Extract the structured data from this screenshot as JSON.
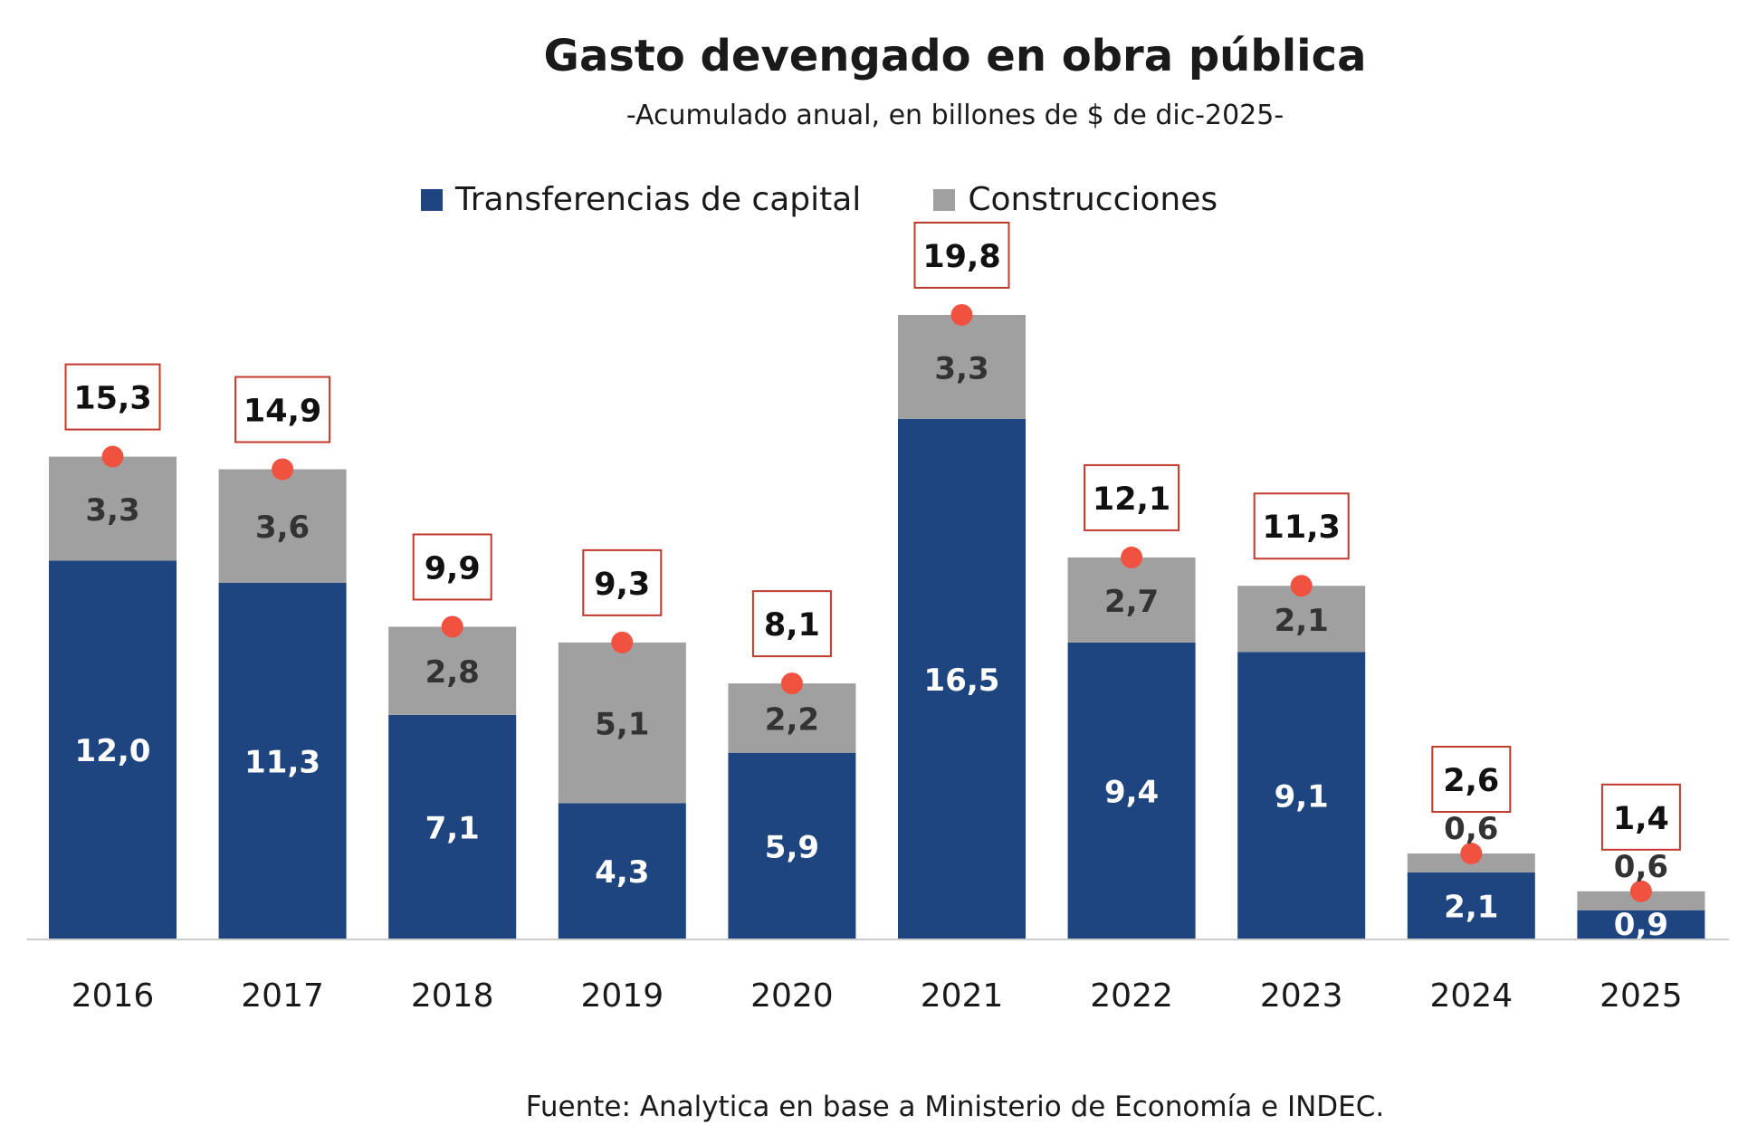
{
  "chart_data": {
    "type": "bar",
    "stacked": true,
    "title": "Gasto devengado en obra pública",
    "subtitle": "-Acumulado anual, en billones de $ de dic-2025-",
    "categories": [
      "2016",
      "2017",
      "2018",
      "2019",
      "2020",
      "2021",
      "2022",
      "2023",
      "2024",
      "2025"
    ],
    "series": [
      {
        "name": "Transferencias de capital",
        "color": "#1f4580",
        "values": [
          12.0,
          11.3,
          7.1,
          4.3,
          5.9,
          16.5,
          9.4,
          9.1,
          2.1,
          0.9
        ],
        "labels": [
          "12,0",
          "11,3",
          "7,1",
          "4,3",
          "5,9",
          "16,5",
          "9,4",
          "9,1",
          "2,1",
          "0,9"
        ]
      },
      {
        "name": "Construcciones",
        "color": "#a0a0a0",
        "values": [
          3.3,
          3.6,
          2.8,
          5.1,
          2.2,
          3.3,
          2.7,
          2.1,
          0.6,
          0.6
        ],
        "labels": [
          "3,3",
          "3,6",
          "2,8",
          "5,1",
          "2,2",
          "3,3",
          "2,7",
          "2,1",
          "0,6",
          "0,6"
        ]
      }
    ],
    "totals": [
      15.3,
      14.9,
      9.9,
      9.3,
      8.1,
      19.8,
      12.1,
      11.3,
      2.6,
      1.4
    ],
    "total_labels": [
      "15,3",
      "14,9",
      "9,9",
      "9,3",
      "8,1",
      "19,8",
      "12,1",
      "11,3",
      "2,6",
      "1,4"
    ],
    "total_marker_color": "#f0523f",
    "total_box_color": "#c0392b",
    "legend_position": "top",
    "grid": false,
    "ylim": [
      0,
      20
    ],
    "source": "Fuente: Analytica en base a Ministerio de Economía e INDEC."
  }
}
